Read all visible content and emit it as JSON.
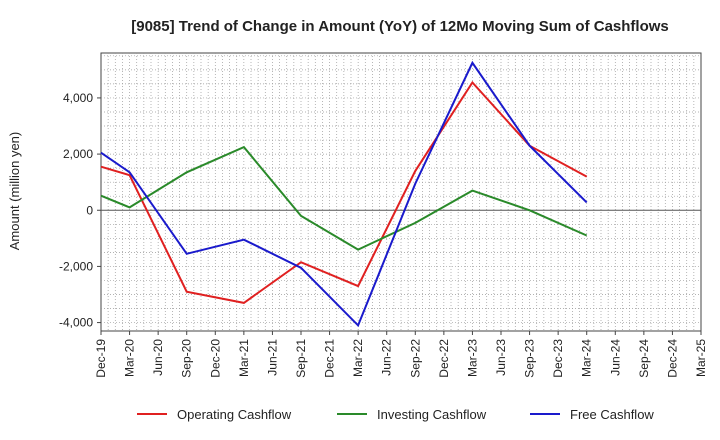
{
  "chart_data": {
    "type": "line",
    "title": "[9085]  Trend of Change in Amount (YoY) of 12Mo Moving Sum of Cashflows",
    "ylabel": "Amount (million yen)",
    "xlabel": "",
    "ylim": [
      -4300,
      5600
    ],
    "yticks": [
      -4000,
      -2000,
      0,
      2000,
      4000
    ],
    "ytick_labels": [
      "-4,000",
      "-2,000",
      "0",
      "2,000",
      "4,000"
    ],
    "categories": [
      "Dec-19",
      "Mar-20",
      "Jun-20",
      "Sep-20",
      "Dec-20",
      "Mar-21",
      "Jun-21",
      "Sep-21",
      "Dec-21",
      "Mar-22",
      "Jun-22",
      "Sep-22",
      "Dec-22",
      "Mar-23",
      "Jun-23",
      "Sep-23",
      "Dec-23",
      "Mar-24",
      "Jun-24",
      "Sep-24",
      "Dec-24",
      "Mar-25"
    ],
    "grid": true,
    "legend_position": "bottom",
    "series": [
      {
        "name": "Operating Cashflow",
        "color": "#e02020",
        "values": [
          1550,
          1250,
          null,
          -2900,
          null,
          -3300,
          null,
          -1850,
          null,
          -2700,
          null,
          1400,
          null,
          4550,
          null,
          2300,
          null,
          1200,
          null,
          null,
          null,
          null
        ]
      },
      {
        "name": "Investing Cashflow",
        "color": "#2a8a2a",
        "values": [
          520,
          100,
          null,
          1350,
          null,
          2250,
          null,
          -200,
          null,
          -1400,
          null,
          -450,
          null,
          700,
          null,
          0,
          null,
          -900,
          null,
          null,
          null,
          null
        ]
      },
      {
        "name": "Free Cashflow",
        "color": "#1a1acc",
        "values": [
          2050,
          1350,
          null,
          -1550,
          null,
          -1050,
          null,
          -2050,
          null,
          -4100,
          null,
          950,
          null,
          5250,
          null,
          2300,
          null,
          280,
          null,
          null,
          null,
          null
        ]
      }
    ]
  }
}
